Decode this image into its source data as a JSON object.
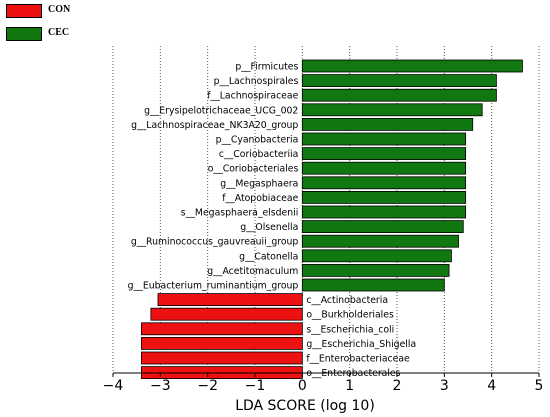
{
  "chart_data": {
    "type": "bar",
    "orientation": "horizontal",
    "xlabel": "LDA SCORE (log 10)",
    "xlim": [
      -4,
      5
    ],
    "xticks": [
      -4,
      -3,
      -2,
      -1,
      0,
      1,
      2,
      3,
      4,
      5
    ],
    "grid": "vertical dotted",
    "legend_placement": "top-left",
    "series": [
      {
        "name": "CON",
        "color": "#ee1111"
      },
      {
        "name": "CEC",
        "color": "#117711"
      }
    ],
    "bars": [
      {
        "label": "p__Firmicutes",
        "value": 4.65,
        "group": "CEC"
      },
      {
        "label": "p__Lachnospirales",
        "value": 4.1,
        "group": "CEC"
      },
      {
        "label": "f__Lachnospiraceae",
        "value": 4.1,
        "group": "CEC"
      },
      {
        "label": "g__Erysipelotrichaceae_UCG_002",
        "value": 3.8,
        "group": "CEC"
      },
      {
        "label": "g__Lachnospiraceae_NK3A20_group",
        "value": 3.6,
        "group": "CEC"
      },
      {
        "label": "p__Cyanobacteria",
        "value": 3.45,
        "group": "CEC"
      },
      {
        "label": "c__Coriobacteriia",
        "value": 3.45,
        "group": "CEC"
      },
      {
        "label": "o__Coriobacteriales",
        "value": 3.45,
        "group": "CEC"
      },
      {
        "label": "g__Megasphaera",
        "value": 3.45,
        "group": "CEC"
      },
      {
        "label": "f__Atopobiaceae",
        "value": 3.45,
        "group": "CEC"
      },
      {
        "label": "s__Megasphaera_elsdenii",
        "value": 3.45,
        "group": "CEC"
      },
      {
        "label": "g__Olsenella",
        "value": 3.4,
        "group": "CEC"
      },
      {
        "label": "g__Ruminococcus_gauvreauii_group",
        "value": 3.3,
        "group": "CEC"
      },
      {
        "label": "g__Catonella",
        "value": 3.15,
        "group": "CEC"
      },
      {
        "label": "g__Acetitomaculum",
        "value": 3.1,
        "group": "CEC"
      },
      {
        "label": "g__Eubacterium_ruminantium_group",
        "value": 3.0,
        "group": "CEC"
      },
      {
        "label": "c__Actinobacteria",
        "value": -3.05,
        "group": "CON"
      },
      {
        "label": "o__Burkholderiales",
        "value": -3.2,
        "group": "CON"
      },
      {
        "label": "s__Escherichia_coli",
        "value": -3.4,
        "group": "CON"
      },
      {
        "label": "g__Escherichia_Shigella",
        "value": -3.4,
        "group": "CON"
      },
      {
        "label": "f__Enterobacteriaceae",
        "value": -3.4,
        "group": "CON"
      },
      {
        "label": "o__Enterobacterales",
        "value": -3.4,
        "group": "CON"
      }
    ]
  }
}
